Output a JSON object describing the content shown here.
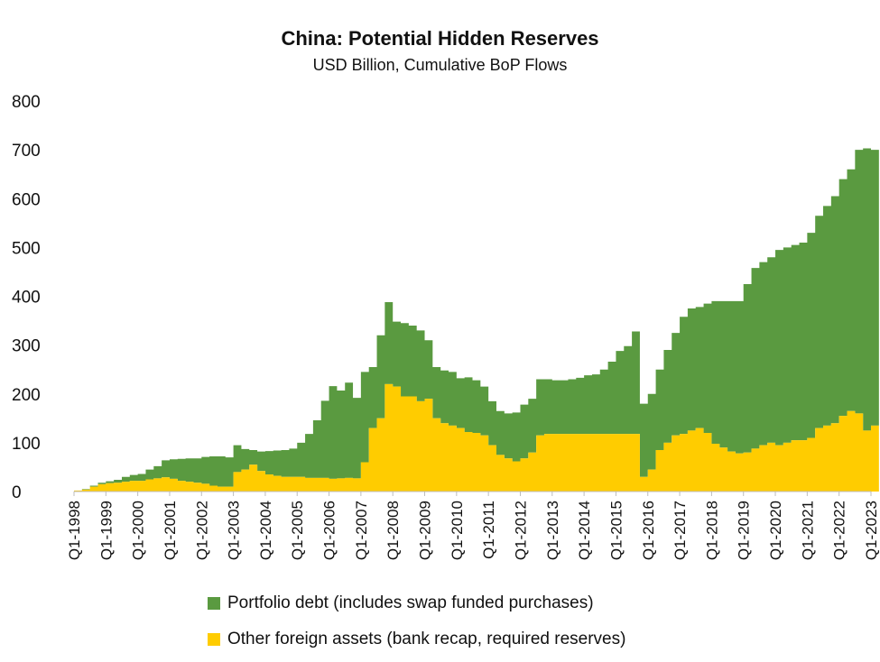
{
  "chart_data": {
    "type": "area",
    "title": "China: Potential Hidden Reserves",
    "subtitle": "USD Billion, Cumulative BoP Flows",
    "xlabel": "",
    "ylabel": "",
    "ylim": [
      0,
      800
    ],
    "yticks": [
      0,
      100,
      200,
      300,
      400,
      500,
      600,
      700,
      800
    ],
    "grid": false,
    "legend_position": "bottom",
    "stacking": "stacked",
    "x_tick_labels": [
      "Q1-1998",
      "Q1-1999",
      "Q1-2000",
      "Q1-2001",
      "Q1-2002",
      "Q1-2003",
      "Q1-2004",
      "Q1-2005",
      "Q1-2006",
      "Q1-2007",
      "Q1-2008",
      "Q1-2009",
      "Q1-2010",
      "Q1-2011",
      "Q1-2012",
      "Q1-2013",
      "Q1-2014",
      "Q1-2015",
      "Q1-2016",
      "Q1-2017",
      "Q1-2018",
      "Q1-2019",
      "Q1-2020",
      "Q1-2021",
      "Q1-2022",
      "Q1-2023"
    ],
    "years": [
      1998,
      1999,
      2000,
      2001,
      2002,
      2003,
      2004,
      2005,
      2006,
      2007,
      2008,
      2009,
      2010,
      2011,
      2012,
      2013,
      2014,
      2015,
      2016,
      2017,
      2018,
      2019,
      2020,
      2021,
      2022
    ],
    "series": [
      {
        "name": "Other foreign assets (bank recap, required reserves)",
        "color": "#ffcc00",
        "values": [
          2,
          4,
          10,
          15,
          17,
          18,
          20,
          22,
          22,
          25,
          27,
          29,
          26,
          22,
          20,
          18,
          16,
          12,
          10,
          10,
          40,
          45,
          55,
          42,
          35,
          32,
          30,
          30,
          30,
          28,
          28,
          28,
          26,
          27,
          28,
          27,
          60,
          130,
          150,
          220,
          215,
          195,
          195,
          185,
          190,
          150,
          140,
          135,
          130,
          122,
          120,
          115,
          95,
          75,
          68,
          62,
          68,
          80,
          115,
          118,
          118,
          118,
          118,
          118,
          118,
          118,
          118,
          118,
          118,
          118,
          118,
          30,
          45,
          85,
          100,
          115,
          118,
          125,
          130,
          120,
          98,
          90,
          82,
          78,
          80,
          88,
          95,
          100,
          95,
          100,
          105,
          105,
          110,
          130,
          135,
          140,
          155,
          165,
          160,
          125,
          135
        ]
      },
      {
        "name": "Portfolio debt (includes swap funded purchases)",
        "color": "#5a9a40",
        "values": [
          0,
          1,
          2,
          3,
          4,
          6,
          10,
          12,
          14,
          20,
          25,
          35,
          40,
          45,
          48,
          50,
          55,
          60,
          62,
          60,
          55,
          42,
          30,
          40,
          48,
          52,
          55,
          58,
          70,
          90,
          118,
          158,
          190,
          180,
          195,
          165,
          185,
          125,
          170,
          168,
          133,
          150,
          145,
          145,
          120,
          105,
          108,
          110,
          102,
          112,
          108,
          100,
          90,
          90,
          92,
          100,
          110,
          110,
          115,
          112,
          110,
          110,
          112,
          115,
          120,
          122,
          132,
          148,
          170,
          180,
          210,
          150,
          155,
          165,
          190,
          210,
          240,
          250,
          248,
          265,
          292,
          300,
          308,
          312,
          345,
          370,
          375,
          380,
          400,
          400,
          400,
          405,
          420,
          435,
          450,
          465,
          485,
          495,
          540,
          578,
          565
        ]
      }
    ]
  }
}
